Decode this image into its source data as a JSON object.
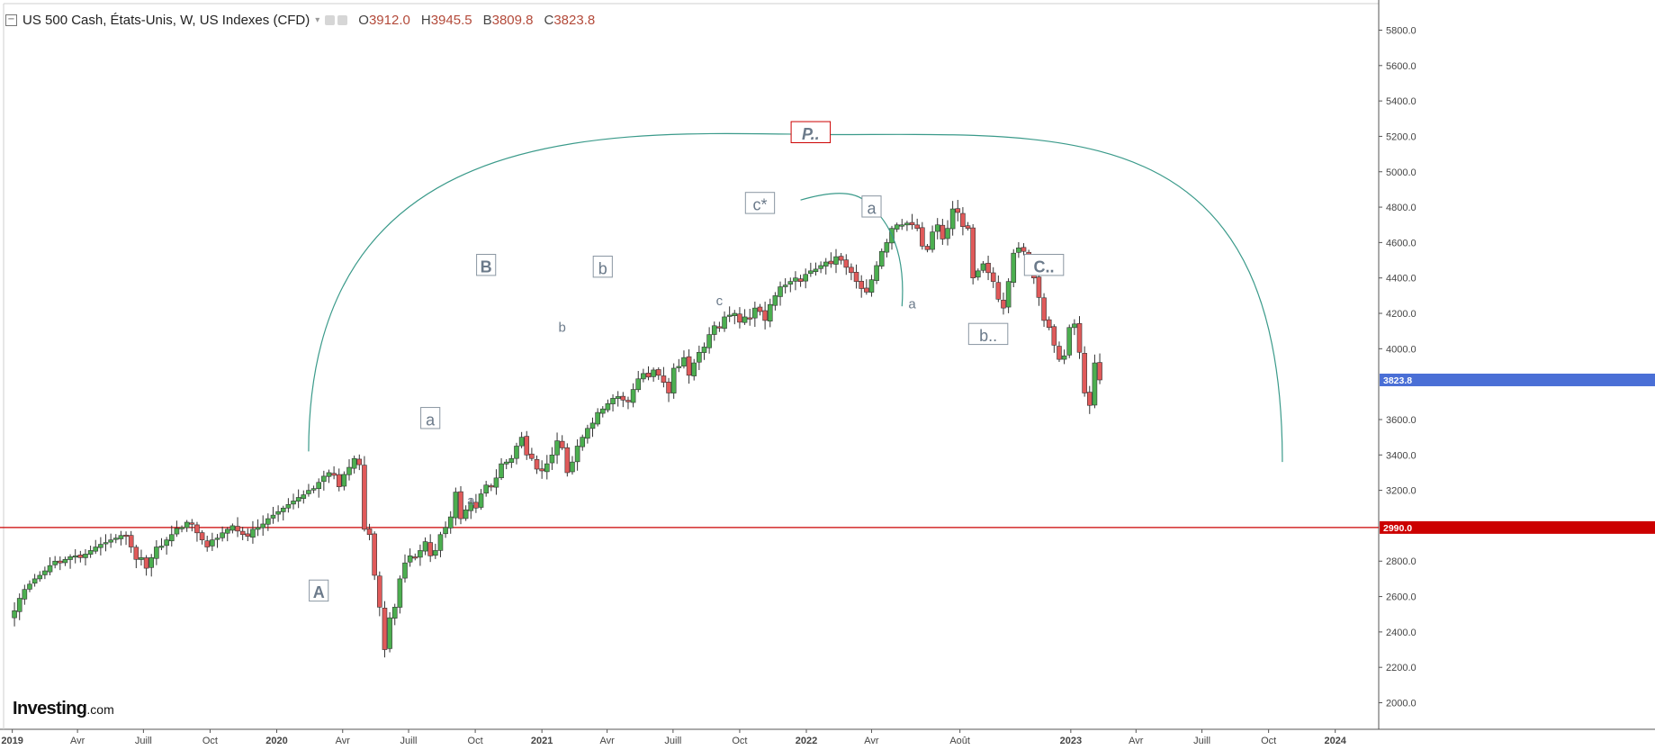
{
  "header": {
    "title": "US 500 Cash, États-Unis, W, US Indexes (CFD)",
    "ohlc": [
      {
        "key": "O",
        "value": "3912.0"
      },
      {
        "key": "H",
        "value": "3945.5"
      },
      {
        "key": "B",
        "value": "3809.8"
      },
      {
        "key": "C",
        "value": "3823.8"
      }
    ]
  },
  "logo": {
    "main": "Investing",
    "suffix": ".com"
  },
  "colors": {
    "up": "#4caf50",
    "down": "#e05a5a",
    "curve": "#3a9a8a",
    "hline": "#cc0000",
    "price_badge": "#4a6fd6",
    "hline_badge": "#cc0000",
    "label": "#6b7a8a"
  },
  "chart_data": {
    "type": "candlestick",
    "ylim": [
      1850,
      5950
    ],
    "xlim": [
      "2018-12-20",
      "2024-03-01"
    ],
    "y_ticks": [
      "5800.0",
      "5600.0",
      "5400.0",
      "5200.0",
      "5000.0",
      "4800.0",
      "4600.0",
      "4400.0",
      "4200.0",
      "4000.0",
      "3600.0",
      "3400.0",
      "3200.0",
      "2800.0",
      "2600.0",
      "2400.0",
      "2200.0",
      "2000.0"
    ],
    "x_ticks": [
      {
        "label": "2019",
        "date": "2019-01-01",
        "bold": true
      },
      {
        "label": "Avr",
        "date": "2019-04-01"
      },
      {
        "label": "Juill",
        "date": "2019-07-01"
      },
      {
        "label": "Oct",
        "date": "2019-10-01"
      },
      {
        "label": "2020",
        "date": "2020-01-01",
        "bold": true
      },
      {
        "label": "Avr",
        "date": "2020-04-01"
      },
      {
        "label": "Juill",
        "date": "2020-07-01"
      },
      {
        "label": "Oct",
        "date": "2020-10-01"
      },
      {
        "label": "2021",
        "date": "2021-01-01",
        "bold": true
      },
      {
        "label": "Avr",
        "date": "2021-04-01"
      },
      {
        "label": "Juill",
        "date": "2021-07-01"
      },
      {
        "label": "Oct",
        "date": "2021-10-01"
      },
      {
        "label": "2022",
        "date": "2022-01-01",
        "bold": true
      },
      {
        "label": "Avr",
        "date": "2022-04-01"
      },
      {
        "label": "Août",
        "date": "2022-08-01"
      },
      {
        "label": "2023",
        "date": "2023-01-01",
        "bold": true
      },
      {
        "label": "Avr",
        "date": "2023-04-01"
      },
      {
        "label": "Juill",
        "date": "2023-07-01"
      },
      {
        "label": "Oct",
        "date": "2023-10-01"
      },
      {
        "label": "2024",
        "date": "2024-01-01",
        "bold": true
      }
    ],
    "start_date": "2019-01-04",
    "closes": [
      2520,
      2590,
      2640,
      2670,
      2700,
      2720,
      2745,
      2775,
      2800,
      2790,
      2810,
      2825,
      2830,
      2820,
      2840,
      2860,
      2880,
      2895,
      2905,
      2920,
      2930,
      2945,
      2940,
      2880,
      2810,
      2820,
      2760,
      2820,
      2880,
      2885,
      2920,
      2950,
      2985,
      2990,
      3020,
      3010,
      2960,
      2920,
      2880,
      2920,
      2930,
      2960,
      2980,
      3000,
      2970,
      2950,
      2940,
      2980,
      2990,
      3010,
      3040,
      3060,
      3080,
      3100,
      3120,
      3140,
      3160,
      3175,
      3200,
      3210,
      3245,
      3280,
      3300,
      3285,
      3220,
      3290,
      3330,
      3380,
      3345,
      2980,
      2950,
      2720,
      2540,
      2300,
      2480,
      2540,
      2700,
      2790,
      2830,
      2820,
      2860,
      2910,
      2830,
      2860,
      2950,
      2990,
      3050,
      3190,
      3040,
      3090,
      3130,
      3100,
      3180,
      3230,
      3220,
      3270,
      3350,
      3360,
      3380,
      3450,
      3500,
      3400,
      3380,
      3320,
      3310,
      3350,
      3400,
      3480,
      3440,
      3300,
      3360,
      3450,
      3500,
      3550,
      3580,
      3640,
      3660,
      3690,
      3720,
      3730,
      3710,
      3700,
      3770,
      3830,
      3860,
      3840,
      3880,
      3850,
      3810,
      3750,
      3890,
      3900,
      3950,
      3850,
      3920,
      3980,
      4010,
      4080,
      4130,
      4120,
      4180,
      4190,
      4200,
      4150,
      4180,
      4170,
      4230,
      4210,
      4160,
      4250,
      4300,
      4350,
      4360,
      4380,
      4400,
      4380,
      4420,
      4440,
      4450,
      4470,
      4490,
      4480,
      4520,
      4500,
      4460,
      4430,
      4380,
      4340,
      4320,
      4390,
      4470,
      4550,
      4600,
      4680,
      4700,
      4700,
      4710,
      4700,
      4680,
      4580,
      4560,
      4660,
      4700,
      4620,
      4680,
      4790,
      4770,
      4690,
      4680,
      4400,
      4440,
      4480,
      4430,
      4380,
      4280,
      4230,
      4380,
      4540,
      4570,
      4550,
      4480,
      4400,
      4290,
      4160,
      4120,
      4020,
      3940,
      3960,
      4120,
      4140,
      3980,
      3750,
      3680,
      3920,
      3823.8
    ],
    "hline": 2990,
    "hline_label": "2990.0",
    "last_price_label": "3823.8",
    "arc_main": {
      "start": [
        "2020-02-14",
        3420
      ],
      "peak": [
        "2022-02-15",
        5210
      ],
      "end": [
        "2023-10-20",
        3360
      ]
    },
    "arc_small": {
      "start": [
        "2021-12-24",
        4840
      ],
      "top": [
        "2022-03-18",
        4870
      ],
      "end": [
        "2022-05-13",
        4240
      ]
    },
    "wave_labels": [
      {
        "text": "A",
        "date": "2020-02-28",
        "price": 2620,
        "boxed": true,
        "bold": true
      },
      {
        "text": "B",
        "date": "2020-10-16",
        "price": 4460,
        "boxed": true,
        "bold": true
      },
      {
        "text": "a",
        "date": "2020-07-31",
        "price": 3595,
        "boxed": true
      },
      {
        "text": "a",
        "date": "2020-09-25",
        "price": 3140,
        "boxed": false
      },
      {
        "text": "b",
        "date": "2021-01-29",
        "price": 4120,
        "boxed": false
      },
      {
        "text": "b",
        "date": "2021-03-26",
        "price": 4450,
        "boxed": true
      },
      {
        "text": "c",
        "date": "2021-09-03",
        "price": 4270,
        "boxed": false
      },
      {
        "text": "c*",
        "date": "2021-10-29",
        "price": 4810,
        "boxed": true
      },
      {
        "text": "P..",
        "date": "2022-01-07",
        "price": 5210,
        "boxed": true,
        "bold": true,
        "red_box": true
      },
      {
        "text": "a",
        "date": "2022-04-01",
        "price": 4790,
        "boxed": true
      },
      {
        "text": "a",
        "date": "2022-05-27",
        "price": 4250,
        "boxed": false
      },
      {
        "text": "b..",
        "date": "2022-09-09",
        "price": 4070,
        "boxed": true
      },
      {
        "text": "C..",
        "date": "2022-11-25",
        "price": 4460,
        "boxed": true,
        "bold": true
      }
    ]
  }
}
